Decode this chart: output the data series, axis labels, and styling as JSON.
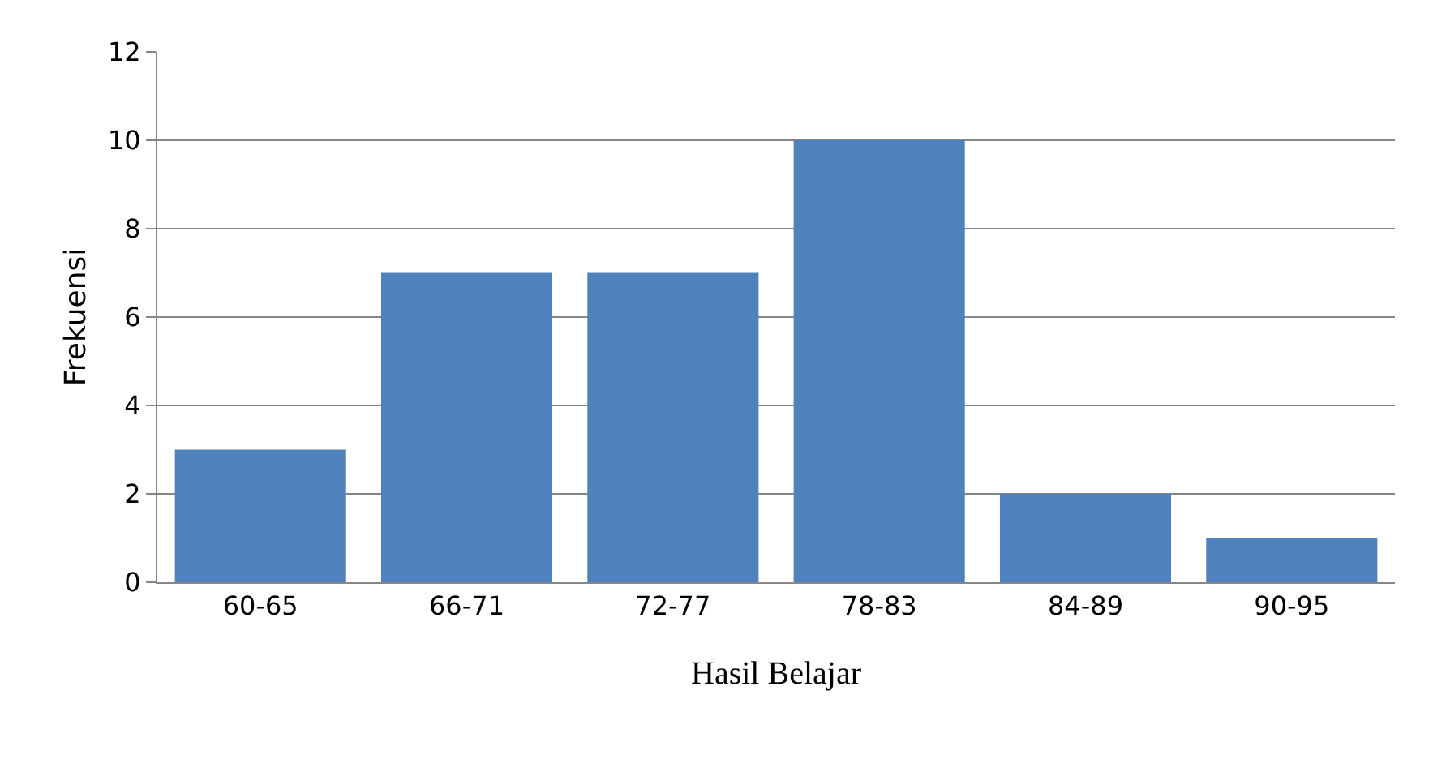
{
  "chart_data": {
    "type": "bar",
    "xlabel": "Hasil Belajar",
    "ylabel": "Frekuensi",
    "categories": [
      "60-65",
      "66-71",
      "72-77",
      "78-83",
      "84-89",
      "90-95"
    ],
    "values": [
      3,
      7,
      7,
      10,
      2,
      1
    ],
    "color": "#4f81bd",
    "ylim": [
      0,
      12
    ],
    "yticks": [
      0,
      2,
      4,
      6,
      8,
      10,
      12
    ],
    "grid": "y"
  }
}
